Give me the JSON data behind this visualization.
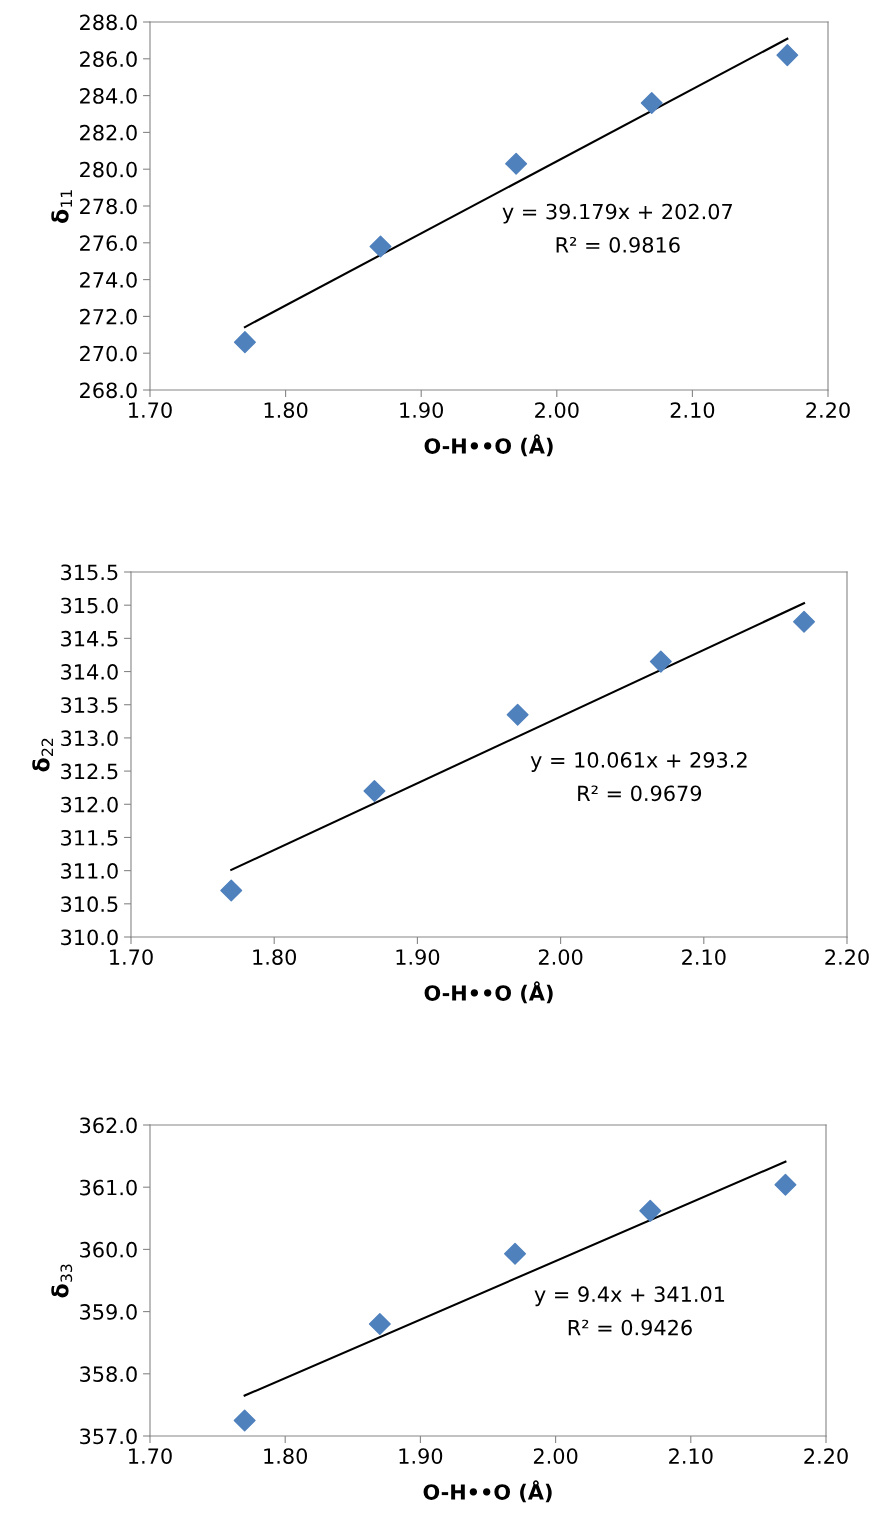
{
  "chart_data": [
    {
      "type": "scatter",
      "xlabel": "O-H••O (Å)",
      "ylabel": "δ$_{11}$",
      "grid": false,
      "marker": "diamond",
      "series": [
        {
          "color": "#4f81bd",
          "x": [
            1.77,
            1.87,
            1.97,
            2.07,
            2.17
          ],
          "values": [
            270.6,
            275.8,
            280.3,
            283.6,
            286.2
          ]
        },
        {
          "type": "line",
          "color": "#000000",
          "marker": "none",
          "x": [
            1.77,
            2.17
          ],
          "values": [
            271.42,
            287.09
          ]
        }
      ],
      "xlim": [
        1.7,
        2.2
      ],
      "xticks": [
        {
          "value": 1.7,
          "label": "1.70"
        },
        {
          "value": 1.8,
          "label": "1.80"
        },
        {
          "value": 1.9,
          "label": "1.90"
        },
        {
          "value": 2.0,
          "label": "2.00"
        },
        {
          "value": 2.1,
          "label": "2.10"
        },
        {
          "value": 2.2,
          "label": "2.20"
        }
      ],
      "ylim": [
        268,
        288
      ],
      "yticks": [
        {
          "value": 268,
          "label": "268.0"
        },
        {
          "value": 270,
          "label": "270.0"
        },
        {
          "value": 272,
          "label": "272.0"
        },
        {
          "value": 274,
          "label": "274.0"
        },
        {
          "value": 276,
          "label": "276.0"
        },
        {
          "value": 278,
          "label": "278.0"
        },
        {
          "value": 280,
          "label": "280.0"
        },
        {
          "value": 282,
          "label": "282.0"
        },
        {
          "value": 284,
          "label": "284.0"
        },
        {
          "value": 286,
          "label": "286.0"
        },
        {
          "value": 288,
          "label": "288.0"
        }
      ],
      "annotations": [
        "y = 39.179x + 202.07",
        "R² = 0.9816"
      ]
    },
    {
      "type": "scatter",
      "xlabel": "O-H••O (Å)",
      "ylabel": "δ$_{22}$",
      "grid": false,
      "marker": "diamond",
      "series": [
        {
          "color": "#4f81bd",
          "x": [
            1.77,
            1.87,
            1.97,
            2.07,
            2.17
          ],
          "values": [
            310.7,
            312.2,
            313.35,
            314.15,
            314.75
          ]
        },
        {
          "type": "line",
          "color": "#000000",
          "marker": "none",
          "x": [
            1.77,
            2.17
          ],
          "values": [
            311.01,
            315.03
          ]
        }
      ],
      "xlim": [
        1.7,
        2.2
      ],
      "xticks": [
        {
          "value": 1.7,
          "label": "1.70"
        },
        {
          "value": 1.8,
          "label": "1.80"
        },
        {
          "value": 1.9,
          "label": "1.90"
        },
        {
          "value": 2.0,
          "label": "2.00"
        },
        {
          "value": 2.1,
          "label": "2.10"
        },
        {
          "value": 2.2,
          "label": "2.20"
        }
      ],
      "ylim": [
        310,
        315.5
      ],
      "yticks": [
        {
          "value": 310,
          "label": "310.0"
        },
        310.5,
        {
          "value": 311,
          "label": "311.0"
        },
        311.5,
        {
          "value": 312,
          "label": "312.0"
        },
        312.5,
        {
          "value": 313,
          "label": "313.0"
        },
        313.5,
        {
          "value": 314,
          "label": "314.0"
        },
        314.5,
        {
          "value": 315,
          "label": "315.0"
        },
        315.5
      ],
      "annotations": [
        "y = 10.061x + 293.2",
        "R² = 0.9679"
      ]
    },
    {
      "type": "scatter",
      "xlabel": "O-H••O (Å)",
      "ylabel": "δ$_{33}$",
      "grid": false,
      "marker": "diamond",
      "series": [
        {
          "color": "#4f81bd",
          "x": [
            1.77,
            1.87,
            1.97,
            2.07,
            2.17
          ],
          "values": [
            357.25,
            358.8,
            359.93,
            360.62,
            361.04
          ]
        },
        {
          "type": "line",
          "color": "#000000",
          "marker": "none",
          "x": [
            1.77,
            2.17
          ],
          "values": [
            357.65,
            361.41
          ]
        }
      ],
      "xlim": [
        1.7,
        2.2
      ],
      "xticks": [
        {
          "value": 1.7,
          "label": "1.70"
        },
        {
          "value": 1.8,
          "label": "1.80"
        },
        {
          "value": 1.9,
          "label": "1.90"
        },
        {
          "value": 2.0,
          "label": "2.00"
        },
        {
          "value": 2.1,
          "label": "2.10"
        },
        {
          "value": 2.2,
          "label": "2.20"
        }
      ],
      "ylim": [
        357,
        362
      ],
      "yticks": [
        {
          "value": 357,
          "label": "357.0"
        },
        {
          "value": 358,
          "label": "358.0"
        },
        {
          "value": 359,
          "label": "359.0"
        },
        {
          "value": 360,
          "label": "360.0"
        },
        {
          "value": 361,
          "label": "361.0"
        },
        {
          "value": 362,
          "label": "362.0"
        }
      ],
      "annotations": [
        "y = 9.4x + 341.01",
        "R² = 0.9426"
      ]
    }
  ]
}
